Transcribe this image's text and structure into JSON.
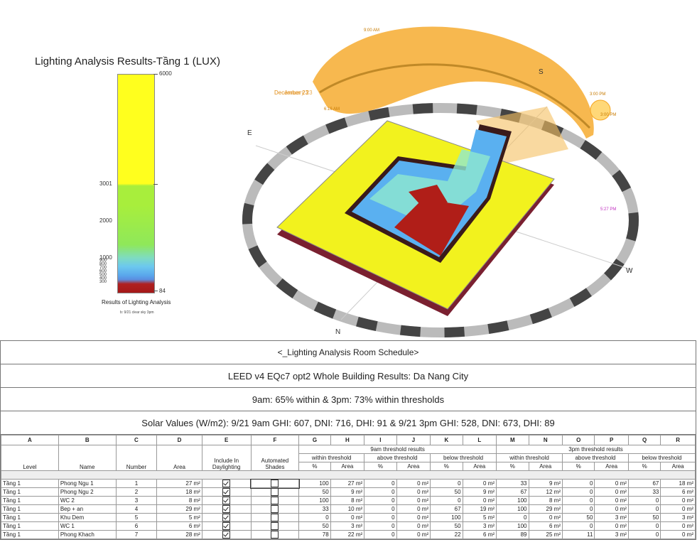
{
  "legend": {
    "title": "Lighting Analysis Results-Tầng 1 (LUX)",
    "ticks": [
      "6000",
      "3001",
      "2000",
      "1000",
      "900",
      "800",
      "700",
      "600",
      "500",
      "400",
      "300",
      "84"
    ],
    "caption": "Results of Lighting Analysis",
    "subcaption": "b: 9/21 clear sky 3pm"
  },
  "scene": {
    "directions": {
      "east": "E",
      "south": "S",
      "west": "W",
      "north": "N"
    },
    "sun_labels": [
      "9:00 AM",
      "December 23",
      "January 23",
      "6:16 AM",
      "3:00 PM",
      "3:00 PM",
      "5:27 PM"
    ],
    "colors": {
      "sunpath": "#f5a623",
      "floor": "#f2f21e",
      "slab": "#7a2030"
    }
  },
  "schedule": {
    "title": "<_Lighting Analysis Room Schedule>",
    "subtitle": "LEED v4 EQc7 opt2 Whole Building Results: Da Nang City",
    "summary": "9am: 65% within & 3pm: 73% within thresholds",
    "solar": "Solar Values (W/m2):  9/21 9am GHI: 607, DNI: 716, DHI: 91  &  9/21 3pm GHI: 528, DNI: 673, DHI: 89",
    "letters": [
      "A",
      "B",
      "C",
      "D",
      "E",
      "F",
      "G",
      "H",
      "I",
      "J",
      "K",
      "L",
      "M",
      "N",
      "O",
      "P",
      "Q",
      "R"
    ],
    "group_9am": "9am threshold results",
    "group_3pm": "3pm threshold results",
    "subgroups": [
      "within threshold",
      "above threshold",
      "below threshold",
      "within threshold",
      "above threshold",
      "below threshold"
    ],
    "col_level": "Level",
    "col_name": "Name",
    "col_number": "Number",
    "col_area": "Area",
    "col_include": "Include In Daylighting",
    "col_shades": "Automated Shades",
    "pct": "%",
    "area": "Area",
    "rows": [
      [
        "Tầng 1",
        "Phong Ngu 1",
        "1",
        "27 m²",
        "100",
        "27 m²",
        "0",
        "0 m²",
        "0",
        "0 m²",
        "33",
        "9 m²",
        "0",
        "0 m²",
        "67",
        "18 m²"
      ],
      [
        "Tầng 1",
        "Phong Ngu 2",
        "2",
        "18 m²",
        "50",
        "9 m²",
        "0",
        "0 m²",
        "50",
        "9 m²",
        "67",
        "12 m²",
        "0",
        "0 m²",
        "33",
        "6 m²"
      ],
      [
        "Tầng 1",
        "WC 2",
        "3",
        "8 m²",
        "100",
        "8 m²",
        "0",
        "0 m²",
        "0",
        "0 m²",
        "100",
        "8 m²",
        "0",
        "0 m²",
        "0",
        "0 m²"
      ],
      [
        "Tầng 1",
        "Bep + an",
        "4",
        "29 m²",
        "33",
        "10 m²",
        "0",
        "0 m²",
        "67",
        "19 m²",
        "100",
        "29 m²",
        "0",
        "0 m²",
        "0",
        "0 m²"
      ],
      [
        "Tầng 1",
        "Khu Dem",
        "5",
        "5 m²",
        "0",
        "0 m²",
        "0",
        "0 m²",
        "100",
        "5 m²",
        "0",
        "0 m²",
        "50",
        "3 m²",
        "50",
        "3 m²"
      ],
      [
        "Tầng 1",
        "WC 1",
        "6",
        "6 m²",
        "50",
        "3 m²",
        "0",
        "0 m²",
        "50",
        "3 m²",
        "100",
        "6 m²",
        "0",
        "0 m²",
        "0",
        "0 m²"
      ],
      [
        "Tầng 1",
        "Phong Khach",
        "7",
        "28 m²",
        "78",
        "22 m²",
        "0",
        "0 m²",
        "22",
        "6 m²",
        "89",
        "25 m²",
        "11",
        "3 m²",
        "0",
        "0 m²"
      ]
    ]
  }
}
